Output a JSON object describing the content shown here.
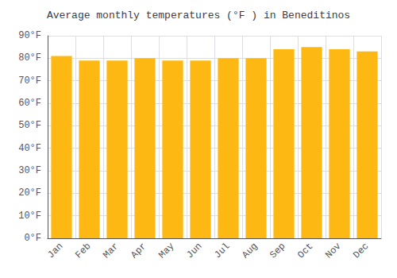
{
  "chart_data": {
    "type": "bar",
    "title": "Average monthly temperatures (°F ) in Beneditinos",
    "categories": [
      "Jan",
      "Feb",
      "Mar",
      "Apr",
      "May",
      "Jun",
      "Jul",
      "Aug",
      "Sep",
      "Oct",
      "Nov",
      "Dec"
    ],
    "values": [
      81,
      79,
      79,
      80,
      79,
      79,
      80,
      80,
      84,
      85,
      84,
      83
    ],
    "color": "#FDB813",
    "ylim": [
      0,
      90
    ],
    "yticks": [
      {
        "value": 0,
        "label": "0°F"
      },
      {
        "value": 10,
        "label": "10°F"
      },
      {
        "value": 20,
        "label": "20°F"
      },
      {
        "value": 30,
        "label": "30°F"
      },
      {
        "value": 40,
        "label": "40°F"
      },
      {
        "value": 50,
        "label": "50°F"
      },
      {
        "value": 60,
        "label": "60°F"
      },
      {
        "value": 70,
        "label": "70°F"
      },
      {
        "value": 80,
        "label": "80°F"
      },
      {
        "value": 90,
        "label": "90°F"
      }
    ],
    "grid": true
  }
}
